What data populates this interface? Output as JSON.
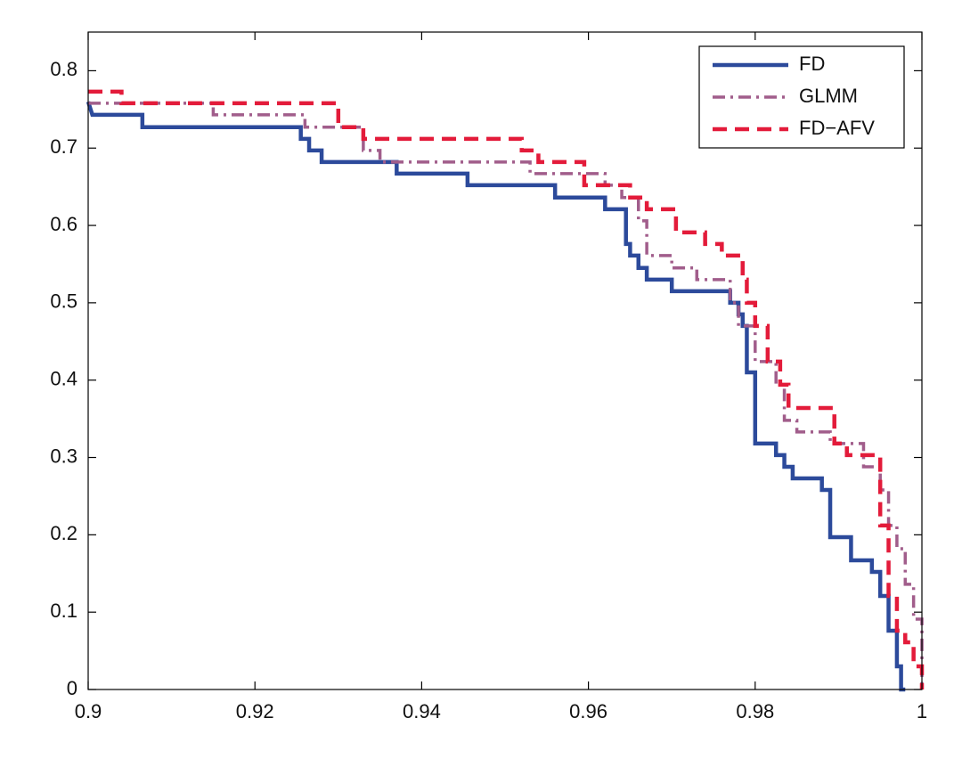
{
  "chart_data": {
    "type": "line",
    "xlim": [
      0.9,
      1
    ],
    "xticks": [
      0.9,
      0.92,
      0.94,
      0.96,
      0.98,
      1
    ],
    "ylim": [
      0,
      0.85
    ],
    "yticks": [
      0,
      0.1,
      0.2,
      0.3,
      0.4,
      0.5,
      0.6,
      0.7,
      0.8
    ],
    "grid": false,
    "legend": "upper right",
    "series": [
      {
        "name": "FD",
        "color": "#2c4a9b",
        "line_style": "solid",
        "x": [
          0.9,
          0.9005,
          0.9065,
          0.9065,
          0.9255,
          0.9255,
          0.9265,
          0.9265,
          0.928,
          0.928,
          0.937,
          0.937,
          0.9455,
          0.9455,
          0.956,
          0.956,
          0.962,
          0.962,
          0.9645,
          0.9645,
          0.965,
          0.965,
          0.966,
          0.966,
          0.967,
          0.967,
          0.97,
          0.97,
          0.977,
          0.977,
          0.978,
          0.978,
          0.9785,
          0.9785,
          0.979,
          0.979,
          0.98,
          0.98,
          0.9825,
          0.9825,
          0.9835,
          0.9835,
          0.9845,
          0.9845,
          0.988,
          0.988,
          0.989,
          0.989,
          0.9915,
          0.9915,
          0.994,
          0.994,
          0.995,
          0.995,
          0.996,
          0.996,
          0.997,
          0.997,
          0.9975,
          0.9975,
          0.998
        ],
        "values": [
          0.76,
          0.743,
          0.743,
          0.727,
          0.727,
          0.712,
          0.712,
          0.697,
          0.697,
          0.682,
          0.682,
          0.667,
          0.667,
          0.652,
          0.652,
          0.636,
          0.636,
          0.621,
          0.621,
          0.576,
          0.576,
          0.561,
          0.561,
          0.545,
          0.545,
          0.53,
          0.53,
          0.515,
          0.515,
          0.5,
          0.5,
          0.485,
          0.485,
          0.47,
          0.47,
          0.41,
          0.41,
          0.318,
          0.318,
          0.303,
          0.303,
          0.288,
          0.288,
          0.273,
          0.273,
          0.258,
          0.258,
          0.197,
          0.197,
          0.167,
          0.167,
          0.152,
          0.152,
          0.121,
          0.121,
          0.076,
          0.076,
          0.03,
          0.03,
          0,
          0
        ]
      },
      {
        "name": "GLMM",
        "color": "#a15d8b",
        "line_style": "dashdot",
        "x": [
          0.9,
          0.915,
          0.915,
          0.926,
          0.926,
          0.933,
          0.933,
          0.935,
          0.935,
          0.953,
          0.953,
          0.962,
          0.962,
          0.964,
          0.964,
          0.966,
          0.966,
          0.967,
          0.967,
          0.97,
          0.97,
          0.973,
          0.973,
          0.977,
          0.977,
          0.978,
          0.978,
          0.98,
          0.98,
          0.9825,
          0.9825,
          0.9835,
          0.9835,
          0.985,
          0.985,
          0.989,
          0.989,
          0.993,
          0.993,
          0.995,
          0.995,
          0.996,
          0.996,
          0.997,
          0.997,
          0.998,
          0.998,
          0.999,
          0.999,
          1,
          1
        ],
        "values": [
          0.758,
          0.758,
          0.743,
          0.743,
          0.727,
          0.727,
          0.697,
          0.697,
          0.682,
          0.682,
          0.667,
          0.667,
          0.652,
          0.652,
          0.636,
          0.636,
          0.606,
          0.606,
          0.561,
          0.561,
          0.545,
          0.545,
          0.53,
          0.53,
          0.5,
          0.5,
          0.47,
          0.47,
          0.424,
          0.424,
          0.394,
          0.394,
          0.348,
          0.348,
          0.333,
          0.333,
          0.318,
          0.318,
          0.288,
          0.288,
          0.258,
          0.258,
          0.212,
          0.212,
          0.182,
          0.182,
          0.136,
          0.136,
          0.091,
          0.091,
          0
        ]
      },
      {
        "name": "FD−AFV",
        "color": "#e31b3a",
        "line_style": "dashed",
        "x": [
          0.9,
          0.904,
          0.904,
          0.93,
          0.93,
          0.933,
          0.933,
          0.952,
          0.952,
          0.954,
          0.954,
          0.9595,
          0.9595,
          0.965,
          0.965,
          0.967,
          0.967,
          0.9705,
          0.9705,
          0.974,
          0.974,
          0.976,
          0.976,
          0.9785,
          0.9785,
          0.979,
          0.979,
          0.98,
          0.98,
          0.9815,
          0.9815,
          0.983,
          0.983,
          0.984,
          0.984,
          0.9895,
          0.9895,
          0.991,
          0.991,
          0.995,
          0.995,
          0.996,
          0.996,
          0.997,
          0.997,
          0.998,
          0.998,
          0.999,
          0.999,
          1,
          1
        ],
        "values": [
          0.773,
          0.773,
          0.758,
          0.758,
          0.727,
          0.727,
          0.712,
          0.712,
          0.697,
          0.697,
          0.682,
          0.682,
          0.652,
          0.652,
          0.636,
          0.636,
          0.621,
          0.621,
          0.591,
          0.591,
          0.576,
          0.576,
          0.561,
          0.561,
          0.53,
          0.53,
          0.5,
          0.5,
          0.47,
          0.47,
          0.424,
          0.424,
          0.394,
          0.394,
          0.364,
          0.364,
          0.318,
          0.318,
          0.303,
          0.303,
          0.212,
          0.212,
          0.121,
          0.121,
          0.076,
          0.076,
          0.061,
          0.061,
          0.03,
          0.03,
          0
        ]
      }
    ]
  }
}
